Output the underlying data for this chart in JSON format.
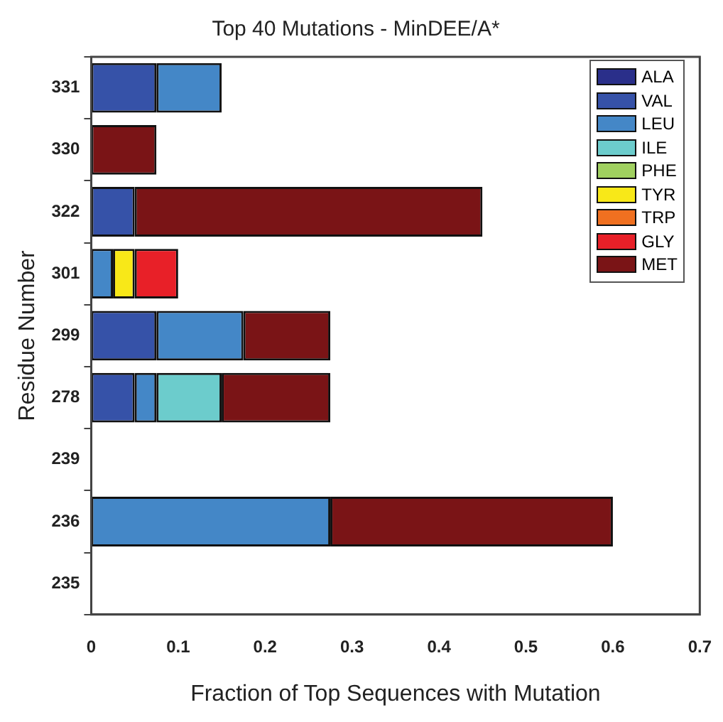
{
  "chart_data": {
    "type": "bar",
    "orientation": "horizontal",
    "stacked": true,
    "title": "Top 40 Mutations - MinDEE/A*",
    "xlabel": "Fraction of Top Sequences with Mutation",
    "ylabel": "Residue Number",
    "categories": [
      "331",
      "330",
      "322",
      "301",
      "299",
      "278",
      "239",
      "236",
      "235"
    ],
    "xlim": [
      0,
      0.7
    ],
    "xticks": [
      0,
      0.1,
      0.2,
      0.3,
      0.4,
      0.5,
      0.6,
      0.7
    ],
    "grid": false,
    "legend": "top right",
    "series": [
      {
        "name": "ALA",
        "color": "#2a2f8a",
        "values": [
          null,
          null,
          null,
          null,
          null,
          null,
          null,
          null,
          null
        ]
      },
      {
        "name": "VAL",
        "color": "#3652a8",
        "values": [
          0.075,
          null,
          0.05,
          null,
          0.075,
          0.05,
          null,
          null,
          null
        ]
      },
      {
        "name": "LEU",
        "color": "#4487c7",
        "values": [
          0.075,
          null,
          null,
          0.025,
          0.1,
          0.025,
          null,
          0.275,
          null
        ]
      },
      {
        "name": "ILE",
        "color": "#6ccccc",
        "values": [
          null,
          null,
          null,
          null,
          null,
          0.075,
          null,
          null,
          null
        ]
      },
      {
        "name": "PHE",
        "color": "#a0d060",
        "values": [
          null,
          null,
          null,
          null,
          null,
          null,
          null,
          null,
          null
        ]
      },
      {
        "name": "TYR",
        "color": "#f8e818",
        "values": [
          null,
          null,
          null,
          0.025,
          null,
          null,
          null,
          null,
          null
        ]
      },
      {
        "name": "TRP",
        "color": "#f07020",
        "values": [
          null,
          null,
          null,
          null,
          null,
          null,
          null,
          null,
          null
        ]
      },
      {
        "name": "GLY",
        "color": "#e82028",
        "values": [
          null,
          null,
          null,
          0.05,
          null,
          null,
          null,
          null,
          null
        ]
      },
      {
        "name": "MET",
        "color": "#7a1416",
        "values": [
          null,
          0.075,
          0.4,
          null,
          0.1,
          0.125,
          null,
          0.325,
          null
        ]
      }
    ]
  }
}
